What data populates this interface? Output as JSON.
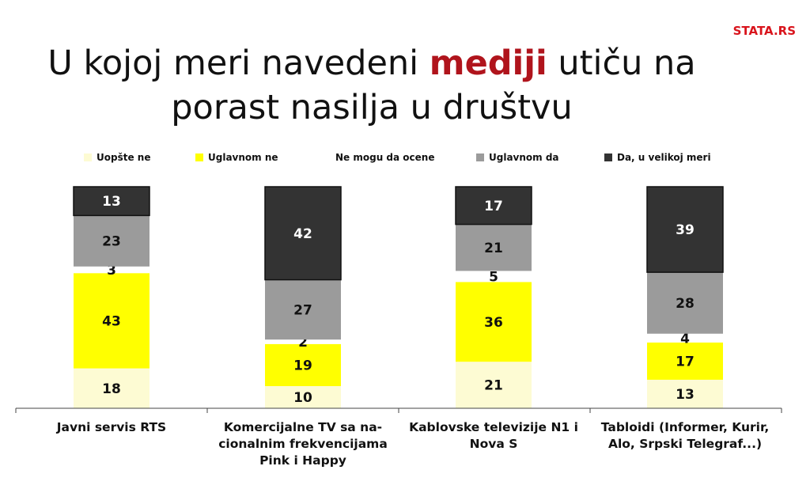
{
  "brand": "STATA.RS",
  "title": {
    "part1": "U kojoj meri navedeni ",
    "highlight": "mediji",
    "part2": " utiču na",
    "line2": "porast nasilja u društvu"
  },
  "colors": {
    "highlight": "#b0141c",
    "brand": "#d9141c"
  },
  "chart_data": {
    "type": "bar",
    "stacked": true,
    "categories": [
      [
        "Javni servis RTS"
      ],
      [
        "Komercijalne TV sa na-",
        "cionalnim frekvencijama",
        "Pink i Happy"
      ],
      [
        "Kablovske televizije N1 i",
        "Nova S"
      ],
      [
        "Tabloidi (Informer, Kurir,",
        "Alo, Srpski Telegraf...)"
      ]
    ],
    "series": [
      {
        "name": "Uopšte ne",
        "color": "#fdfbd3",
        "values": [
          18,
          10,
          21,
          13
        ]
      },
      {
        "name": "Uglavnom ne",
        "color": "#ffff00",
        "values": [
          43,
          19,
          36,
          17
        ]
      },
      {
        "name": "Ne mogu da ocene",
        "color": "#ffffff",
        "values": [
          3,
          2,
          5,
          4
        ]
      },
      {
        "name": "Uglavnom da",
        "color": "#9b9b9b",
        "values": [
          23,
          27,
          21,
          28
        ]
      },
      {
        "name": "Da, u velikoj meri",
        "color": "#333333",
        "values": [
          13,
          42,
          17,
          39
        ]
      }
    ],
    "legend_position": "top",
    "ylim": [
      0,
      100
    ]
  }
}
